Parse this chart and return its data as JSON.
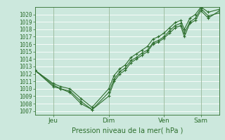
{
  "xlabel": "Pression niveau de la mer( hPa )",
  "bg_color": "#cce8dd",
  "grid_color": "#ffffff",
  "line_color": "#2d6e2d",
  "ylim": [
    1006.5,
    1021.0
  ],
  "yticks": [
    1007,
    1008,
    1009,
    1010,
    1011,
    1012,
    1013,
    1014,
    1015,
    1016,
    1017,
    1018,
    1019,
    1020
  ],
  "xtick_labels": [
    "Jeu",
    "Dim",
    "Ven",
    "Sam"
  ],
  "xtick_positions": [
    1,
    4,
    7,
    9
  ],
  "xlim": [
    0,
    10
  ],
  "line1_x": [
    0.0,
    1.0,
    1.4,
    1.9,
    2.5,
    3.1,
    4.0,
    4.3,
    4.6,
    4.9,
    5.2,
    5.5,
    5.8,
    6.1,
    6.4,
    6.7,
    7.0,
    7.3,
    7.6,
    7.9,
    8.1,
    8.4,
    8.7,
    9.0,
    9.4,
    10.0
  ],
  "line1_y": [
    1012.5,
    1010.5,
    1010.0,
    1009.5,
    1008.0,
    1007.2,
    1009.0,
    1011.0,
    1012.0,
    1012.5,
    1013.5,
    1014.0,
    1014.5,
    1015.0,
    1016.0,
    1016.3,
    1016.8,
    1017.5,
    1018.2,
    1018.5,
    1017.0,
    1018.8,
    1019.2,
    1020.5,
    1019.5,
    1020.5
  ],
  "line2_x": [
    0.0,
    1.0,
    1.4,
    1.9,
    2.5,
    3.1,
    4.0,
    4.3,
    4.6,
    4.9,
    5.2,
    5.5,
    5.8,
    6.1,
    6.4,
    6.7,
    7.0,
    7.3,
    7.6,
    7.9,
    8.1,
    8.4,
    8.7,
    9.0,
    9.4,
    10.0
  ],
  "line2_y": [
    1012.5,
    1010.3,
    1010.0,
    1009.7,
    1008.3,
    1007.2,
    1009.5,
    1011.3,
    1012.3,
    1012.8,
    1013.8,
    1014.2,
    1014.8,
    1015.2,
    1016.2,
    1016.5,
    1017.0,
    1017.8,
    1018.5,
    1018.8,
    1017.5,
    1019.0,
    1019.5,
    1020.8,
    1019.8,
    1020.2
  ],
  "line3_x": [
    0.0,
    1.0,
    1.4,
    1.9,
    2.5,
    3.1,
    4.0,
    4.3,
    4.6,
    4.9,
    5.2,
    5.5,
    5.8,
    6.1,
    6.4,
    6.7,
    7.0,
    7.3,
    7.6,
    7.9,
    8.1,
    8.4,
    8.7,
    9.0,
    9.4,
    10.0
  ],
  "line3_y": [
    1012.5,
    1010.7,
    1010.3,
    1010.0,
    1008.7,
    1007.5,
    1010.0,
    1011.8,
    1012.7,
    1013.2,
    1014.2,
    1014.7,
    1015.2,
    1015.7,
    1016.7,
    1017.0,
    1017.5,
    1018.2,
    1018.9,
    1019.2,
    1018.0,
    1019.5,
    1020.0,
    1021.0,
    1020.3,
    1020.7
  ],
  "vline_positions": [
    1,
    4,
    7,
    9
  ],
  "xlabel_fontsize": 7.0,
  "ytick_fontsize": 5.5,
  "xtick_fontsize": 6.5,
  "linewidth": 0.8,
  "markersize": 3.0
}
